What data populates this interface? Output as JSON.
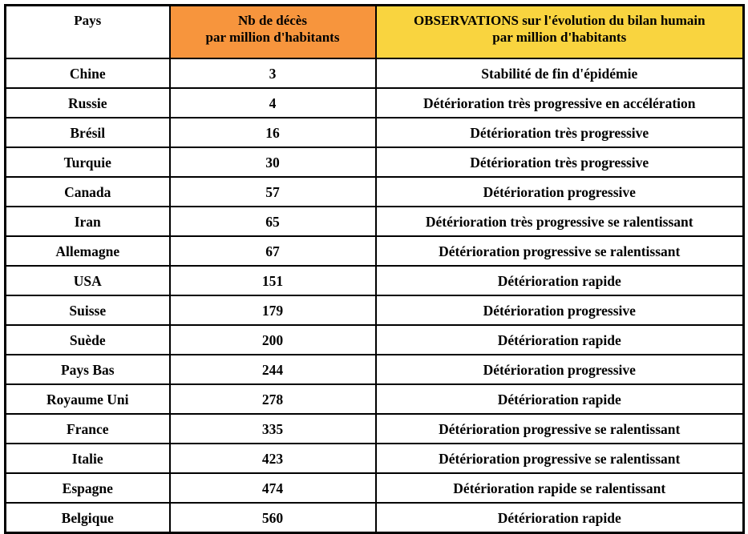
{
  "colors": {
    "header_orange": "#F7953D",
    "header_yellow": "#F9D43F",
    "border": "#000000",
    "text": "#000000",
    "background": "#FFFFFF"
  },
  "table": {
    "header": {
      "pays": "Pays",
      "deaths_line1": "Nb de décès",
      "deaths_line2": "par million d'habitants",
      "obs_line1": "OBSERVATIONS sur l'évolution du bilan humain",
      "obs_line2": "par million d'habitants"
    },
    "rows": [
      {
        "pays": "Chine",
        "deaths": "3",
        "obs": "Stabilité de fin d'épidémie"
      },
      {
        "pays": "Russie",
        "deaths": "4",
        "obs": "Détérioration très progressive en accélération"
      },
      {
        "pays": "Brésil",
        "deaths": "16",
        "obs": "Détérioration très progressive"
      },
      {
        "pays": "Turquie",
        "deaths": "30",
        "obs": "Détérioration très progressive"
      },
      {
        "pays": "Canada",
        "deaths": "57",
        "obs": "Détérioration progressive"
      },
      {
        "pays": "Iran",
        "deaths": "65",
        "obs": "Détérioration très progressive se ralentissant"
      },
      {
        "pays": "Allemagne",
        "deaths": "67",
        "obs": "Détérioration progressive se ralentissant"
      },
      {
        "pays": "USA",
        "deaths": "151",
        "obs": "Détérioration rapide"
      },
      {
        "pays": "Suisse",
        "deaths": "179",
        "obs": "Détérioration progressive"
      },
      {
        "pays": "Suède",
        "deaths": "200",
        "obs": "Détérioration rapide"
      },
      {
        "pays": "Pays Bas",
        "deaths": "244",
        "obs": "Détérioration progressive"
      },
      {
        "pays": "Royaume Uni",
        "deaths": "278",
        "obs": "Détérioration rapide"
      },
      {
        "pays": "France",
        "deaths": "335",
        "obs": "Détérioration progressive se ralentissant"
      },
      {
        "pays": "Italie",
        "deaths": "423",
        "obs": "Détérioration progressive se ralentissant"
      },
      {
        "pays": "Espagne",
        "deaths": "474",
        "obs": "Détérioration rapide se ralentissant"
      },
      {
        "pays": "Belgique",
        "deaths": "560",
        "obs": "Détérioration rapide"
      }
    ]
  },
  "chart_data": {
    "type": "table",
    "title": "",
    "columns": [
      "Pays",
      "Nb de décès par million d'habitants",
      "OBSERVATIONS sur l'évolution du bilan humain par million d'habitants"
    ],
    "rows": [
      [
        "Chine",
        3,
        "Stabilité de fin d'épidémie"
      ],
      [
        "Russie",
        4,
        "Détérioration très progressive en accélération"
      ],
      [
        "Brésil",
        16,
        "Détérioration très progressive"
      ],
      [
        "Turquie",
        30,
        "Détérioration très progressive"
      ],
      [
        "Canada",
        57,
        "Détérioration progressive"
      ],
      [
        "Iran",
        65,
        "Détérioration très progressive se ralentissant"
      ],
      [
        "Allemagne",
        67,
        "Détérioration progressive se ralentissant"
      ],
      [
        "USA",
        151,
        "Détérioration rapide"
      ],
      [
        "Suisse",
        179,
        "Détérioration progressive"
      ],
      [
        "Suède",
        200,
        "Détérioration rapide"
      ],
      [
        "Pays Bas",
        244,
        "Détérioration progressive"
      ],
      [
        "Royaume Uni",
        278,
        "Détérioration rapide"
      ],
      [
        "France",
        335,
        "Détérioration progressive se ralentissant"
      ],
      [
        "Italie",
        423,
        "Détérioration progressive se ralentissant"
      ],
      [
        "Espagne",
        474,
        "Détérioration rapide se ralentissant"
      ],
      [
        "Belgique",
        560,
        "Détérioration rapide"
      ]
    ]
  }
}
